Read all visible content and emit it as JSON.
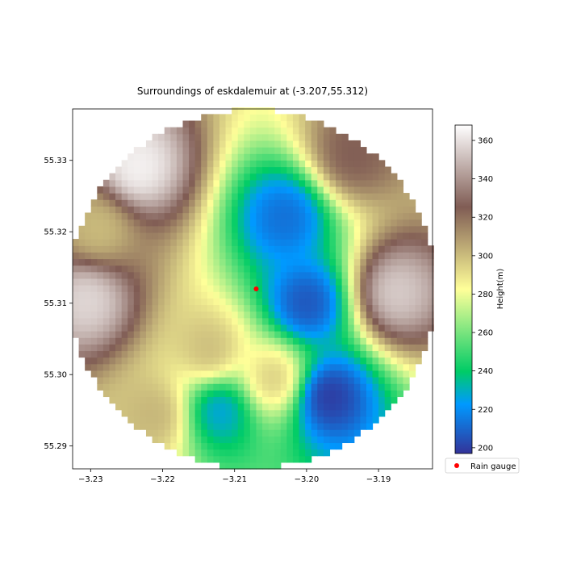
{
  "chart_data": {
    "type": "heatmap",
    "title": "Surroundings of eskdalemuir at (-3.207,55.312)",
    "xlabel": "",
    "ylabel": "",
    "xlim": [
      -3.2325,
      -3.1825
    ],
    "ylim": [
      55.2868,
      55.3372
    ],
    "x_ticks": [
      -3.23,
      -3.22,
      -3.21,
      -3.2,
      -3.19
    ],
    "x_tick_labels": [
      "−3.23",
      "−3.22",
      "−3.21",
      "−3.20",
      "−3.19"
    ],
    "y_ticks": [
      55.29,
      55.3,
      55.31,
      55.32,
      55.33
    ],
    "y_tick_labels": [
      "55.29",
      "55.30",
      "55.31",
      "55.32",
      "55.33"
    ],
    "grid": false,
    "colorbar": {
      "label": "Height(m)",
      "range": [
        197,
        368
      ],
      "ticks": [
        200,
        220,
        240,
        260,
        280,
        300,
        320,
        340,
        360
      ],
      "colormap": "terrain"
    },
    "features": [
      {
        "kind": "valley",
        "x": -3.197,
        "y": 55.297,
        "height": 198
      },
      {
        "kind": "valley",
        "x": -3.2,
        "y": 55.31,
        "height": 205
      },
      {
        "kind": "valley",
        "x": -3.203,
        "y": 55.322,
        "height": 212
      },
      {
        "kind": "valley",
        "x": -3.212,
        "y": 55.295,
        "height": 225
      },
      {
        "kind": "hill",
        "x": -3.2235,
        "y": 55.329,
        "height": 365
      },
      {
        "kind": "hill",
        "x": -3.2305,
        "y": 55.3105,
        "height": 358
      },
      {
        "kind": "hill",
        "x": -3.1875,
        "y": 55.3115,
        "height": 355
      },
      {
        "kind": "hill",
        "x": -3.1935,
        "y": 55.331,
        "height": 325
      },
      {
        "kind": "hill",
        "x": -3.2135,
        "y": 55.3035,
        "height": 300
      },
      {
        "kind": "hill",
        "x": -3.2045,
        "y": 55.2995,
        "height": 296
      },
      {
        "kind": "hill",
        "x": -3.221,
        "y": 55.2945,
        "height": 302
      },
      {
        "kind": "hill",
        "x": -3.229,
        "y": 55.3205,
        "height": 300
      }
    ],
    "gauge": {
      "name": "Rain gauge",
      "x": -3.207,
      "y": 55.312,
      "color": "#ff0000"
    },
    "legend": {
      "placement": "bottom-right outside",
      "entries": [
        "Rain gauge"
      ]
    }
  }
}
